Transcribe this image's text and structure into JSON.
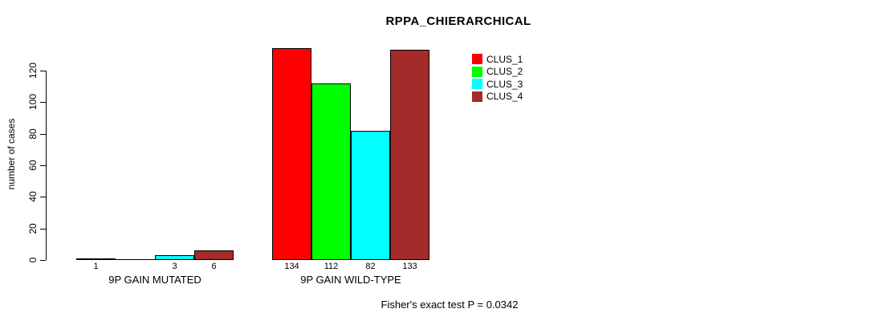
{
  "chart": {
    "title": "RPPA_CHIERARCHICAL",
    "ylabel": "number of cases",
    "footer": "Fisher's exact test P = 0.0342"
  },
  "chart_data": {
    "type": "bar",
    "title": "RPPA_CHIERARCHICAL",
    "xlabel": "",
    "ylabel": "number of cases",
    "categories": [
      "9P GAIN MUTATED",
      "9P GAIN WILD-TYPE"
    ],
    "series": [
      {
        "name": "CLUS_1",
        "color": "#FF0000",
        "values": [
          1,
          134
        ]
      },
      {
        "name": "CLUS_2",
        "color": "#00FF00",
        "values": [
          0,
          112
        ]
      },
      {
        "name": "CLUS_3",
        "color": "#00FFFF",
        "values": [
          3,
          82
        ]
      },
      {
        "name": "CLUS_4",
        "color": "#A52A2A",
        "values": [
          6,
          133
        ]
      }
    ],
    "bar_value_labels": [
      [
        "1",
        "",
        "3",
        "6"
      ],
      [
        "134",
        "112",
        "82",
        "133"
      ]
    ],
    "yticks": [
      0,
      20,
      40,
      60,
      80,
      100,
      120
    ],
    "ylim": [
      0,
      120
    ],
    "grid": false,
    "legend_position": "top-right",
    "legend_entries": [
      "CLUS_1",
      "CLUS_2",
      "CLUS_3",
      "CLUS_4"
    ],
    "annotation": "Fisher's exact test P = 0.0342",
    "axis_color": "#000000",
    "bar_border_color": "#000000"
  }
}
